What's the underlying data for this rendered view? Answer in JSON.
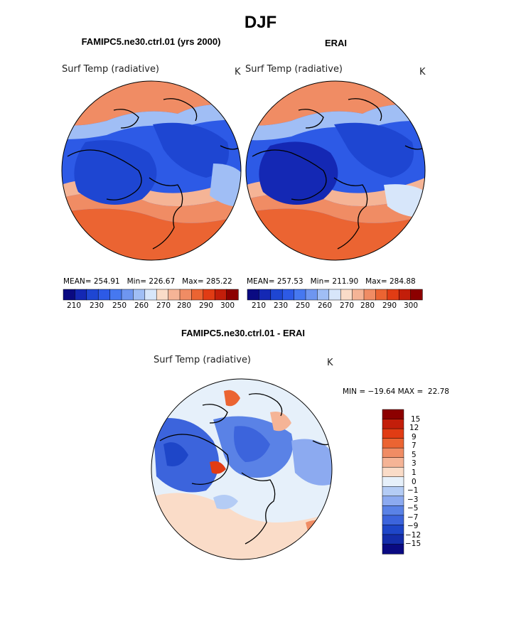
{
  "page": {
    "main_title": "DJF"
  },
  "chart_data": [
    {
      "type": "heatmap",
      "projection": "polar stereographic (north pole)",
      "title": "FAMIPC5.ne30.ctrl.01 (yrs 2000)",
      "variable_label": "Surf Temp (radiative)",
      "units": "K",
      "stats": {
        "mean": "254.91",
        "min": "226.67",
        "max": "285.22"
      },
      "stats_text": "MEAN= 254.91   Min= 226.67   Max= 285.22",
      "colorbar_levels": [
        210,
        230,
        250,
        260,
        270,
        280,
        290,
        300
      ],
      "colorbar_ticks": [
        "210",
        "230",
        "250",
        "260",
        "270",
        "280",
        "290",
        "300"
      ]
    },
    {
      "type": "heatmap",
      "projection": "polar stereographic (north pole)",
      "title": "ERAI",
      "variable_label": "Surf Temp (radiative)",
      "units": "K",
      "stats": {
        "mean": "257.53",
        "min": "211.90",
        "max": "284.88"
      },
      "stats_text": "MEAN= 257.53   Min= 211.90   Max= 284.88",
      "colorbar_levels": [
        210,
        230,
        250,
        260,
        270,
        280,
        290,
        300
      ],
      "colorbar_ticks": [
        "210",
        "230",
        "250",
        "260",
        "270",
        "280",
        "290",
        "300"
      ]
    },
    {
      "type": "heatmap",
      "projection": "polar stereographic (north pole)",
      "title": "FAMIPC5.ne30.ctrl.01 - ERAI",
      "variable_label": "Surf Temp (radiative)",
      "units": "K",
      "min": -19.64,
      "max": 22.78,
      "minmax_text": "MIN = −19.64 MAX =  22.78",
      "colorbar_levels": [
        15,
        12,
        9,
        7,
        5,
        3,
        1,
        0,
        -1,
        -3,
        -5,
        -7,
        -9,
        -12,
        -15
      ],
      "colorbar_ticks": [
        "15",
        "12",
        "9",
        "7",
        "5",
        "3",
        "1",
        "0",
        "−1",
        "−3",
        "−5",
        "−7",
        "−9",
        "−12",
        "−15"
      ]
    }
  ],
  "colors": {
    "abs_palette": [
      "#0a0a82",
      "#1428b4",
      "#1e46d2",
      "#2d5ae6",
      "#4678f0",
      "#6e96f0",
      "#a0bef5",
      "#d7e6fa",
      "#fadcc8",
      "#f5b496",
      "#f08c64",
      "#eb6432",
      "#e13c14",
      "#c31e0a",
      "#8c0000"
    ],
    "diff_palette": [
      "#8c0000",
      "#c31e0a",
      "#e13c14",
      "#eb6432",
      "#f08c64",
      "#f5b496",
      "#fadcc8",
      "#e6f0fa",
      "#b4ccf5",
      "#8caaf0",
      "#5a82e6",
      "#3c64dc",
      "#1e46c8",
      "#142daa",
      "#0a0a82"
    ]
  }
}
